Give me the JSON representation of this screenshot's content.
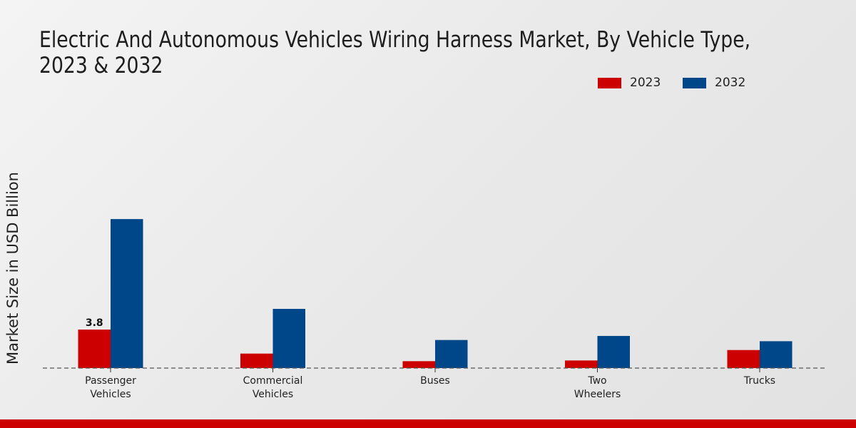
{
  "chart_data": {
    "type": "bar",
    "title": "Electric And Autonomous Vehicles Wiring Harness Market, By Vehicle Type, 2023 & 2032",
    "title_lines": [
      "Electric And Autonomous Vehicles Wiring Harness Market, By Vehicle Type,",
      "2023 & 2032"
    ],
    "xlabel": "",
    "ylabel": "Market Size in USD Billion",
    "categories": [
      [
        "Passenger",
        "Vehicles"
      ],
      [
        "Commercial",
        "Vehicles"
      ],
      [
        "Buses"
      ],
      [
        "Two",
        "Wheelers"
      ],
      [
        "Trucks"
      ]
    ],
    "series": [
      {
        "name": "2023",
        "color": "#cc0000",
        "values": [
          3.8,
          1.43,
          0.68,
          0.75,
          1.78
        ]
      },
      {
        "name": "2032",
        "color": "#00478a",
        "values": [
          14.7,
          5.84,
          2.77,
          3.17,
          2.65
        ]
      }
    ],
    "data_labels": [
      {
        "series": 0,
        "index": 0,
        "text": "3.8"
      }
    ],
    "ylim": [
      0,
      16
    ],
    "grid": false,
    "legend_position": "top-right"
  },
  "colors": {
    "accent_bar": "#cc0000"
  }
}
